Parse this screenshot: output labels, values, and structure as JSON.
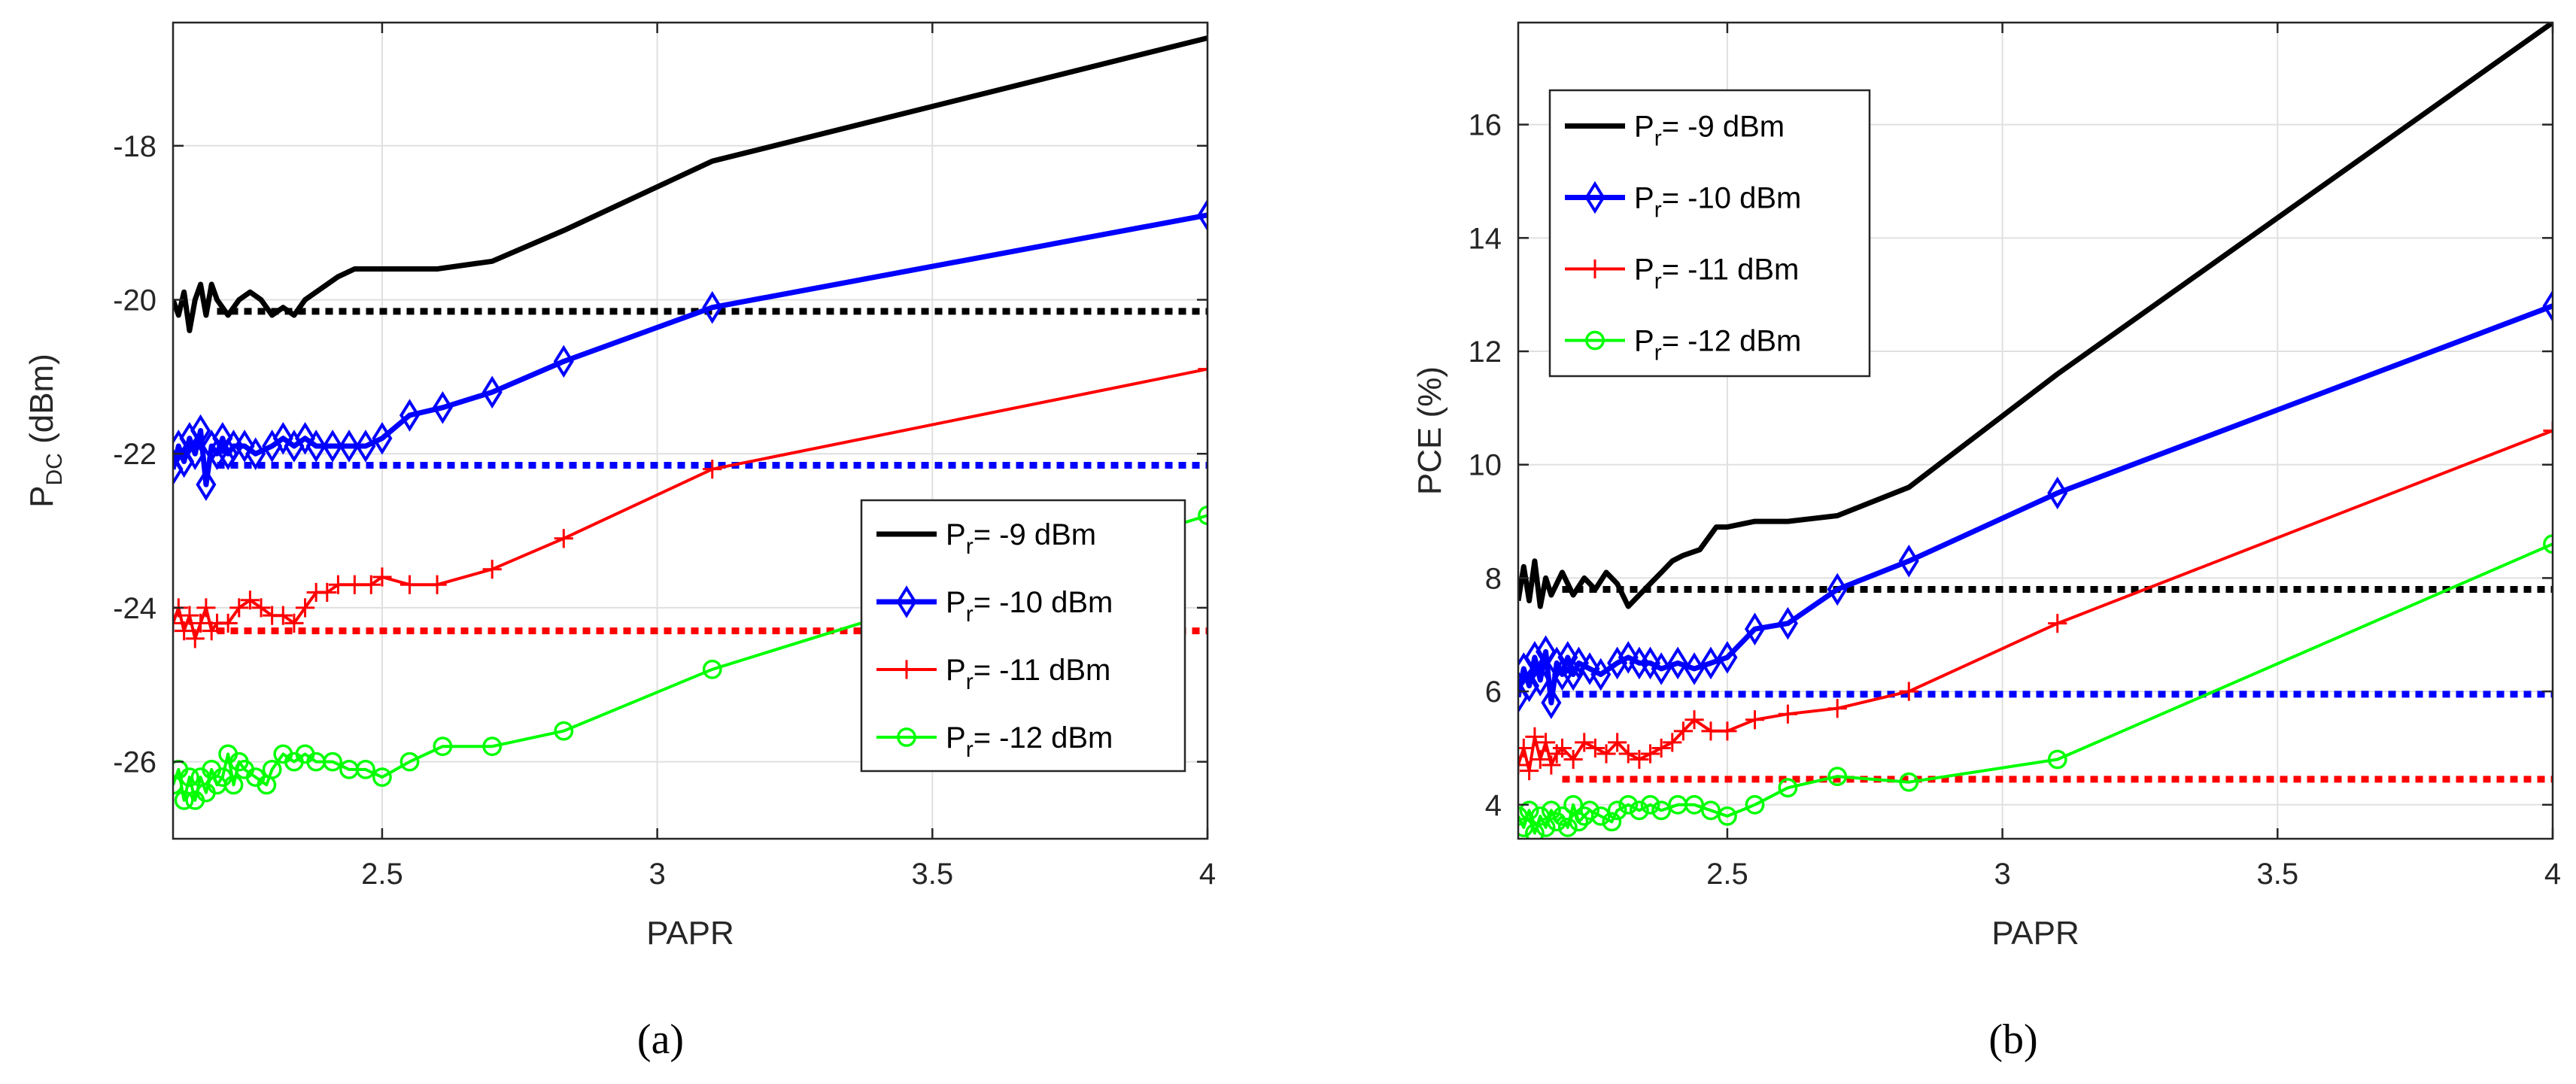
{
  "panels": [
    {
      "caption": "(a)",
      "chart_data": {
        "type": "line",
        "xlabel": "PAPR",
        "ylabel_main": "P",
        "ylabel_sub": "DC",
        "ylabel_unit": " (dBm)",
        "xlim": [
          2.12,
          4.0
        ],
        "ylim": [
          -27.0,
          -16.4
        ],
        "xticks": [
          2.5,
          3,
          3.5,
          4
        ],
        "xtick_labels": [
          "2.5",
          "3",
          "3.5",
          "4"
        ],
        "yticks": [
          -26,
          -24,
          -22,
          -20,
          -18
        ],
        "ytick_labels": [
          "-26",
          "-24",
          "-22",
          "-20",
          "-18"
        ],
        "grid": true,
        "legend_position": "lower-right",
        "series": [
          {
            "name_main": "P",
            "name_sub": "r",
            "name_rest": "= -9 dBm",
            "color": "#000000",
            "marker": "none",
            "width": 7,
            "x": [
              2.12,
              2.13,
              2.14,
              2.15,
              2.16,
              2.17,
              2.18,
              2.19,
              2.2,
              2.22,
              2.24,
              2.26,
              2.28,
              2.3,
              2.32,
              2.34,
              2.36,
              2.4,
              2.42,
              2.45,
              2.48,
              2.5,
              2.55,
              2.6,
              2.7,
              2.83,
              3.1,
              4.0
            ],
            "y": [
              -20.0,
              -20.2,
              -19.9,
              -20.4,
              -20.0,
              -19.8,
              -20.2,
              -19.8,
              -20.0,
              -20.2,
              -20.0,
              -19.9,
              -20.0,
              -20.2,
              -20.1,
              -20.2,
              -20.0,
              -19.8,
              -19.7,
              -19.6,
              -19.6,
              -19.6,
              -19.6,
              -19.6,
              -19.5,
              -19.1,
              -18.2,
              -16.6
            ]
          },
          {
            "name_main": "P",
            "name_sub": "r",
            "name_rest": "= -10 dBm",
            "color": "#0000ff",
            "marker": "diamond",
            "width": 7,
            "x": [
              2.12,
              2.13,
              2.14,
              2.15,
              2.16,
              2.17,
              2.18,
              2.19,
              2.2,
              2.21,
              2.22,
              2.23,
              2.25,
              2.27,
              2.3,
              2.32,
              2.34,
              2.36,
              2.38,
              2.41,
              2.44,
              2.47,
              2.5,
              2.55,
              2.61,
              2.7,
              2.83,
              3.1,
              4.0
            ],
            "y": [
              -22.2,
              -21.9,
              -22.1,
              -21.8,
              -22.0,
              -21.7,
              -22.4,
              -21.9,
              -22.0,
              -21.8,
              -22.0,
              -21.9,
              -21.9,
              -22.0,
              -21.9,
              -21.8,
              -21.9,
              -21.8,
              -21.9,
              -21.9,
              -21.9,
              -21.9,
              -21.8,
              -21.5,
              -21.4,
              -21.2,
              -20.8,
              -20.1,
              -18.9
            ]
          },
          {
            "name_main": "P",
            "name_sub": "r",
            "name_rest": "= -11 dBm",
            "color": "#ff0000",
            "marker": "plus",
            "width": 4,
            "x": [
              2.12,
              2.13,
              2.14,
              2.15,
              2.16,
              2.17,
              2.18,
              2.19,
              2.2,
              2.22,
              2.24,
              2.26,
              2.28,
              2.3,
              2.32,
              2.34,
              2.36,
              2.38,
              2.4,
              2.42,
              2.45,
              2.48,
              2.5,
              2.55,
              2.6,
              2.7,
              2.83,
              3.1,
              4.0
            ],
            "y": [
              -24.2,
              -24.0,
              -24.3,
              -24.1,
              -24.4,
              -24.2,
              -24.0,
              -24.3,
              -24.2,
              -24.2,
              -24.0,
              -23.9,
              -24.0,
              -24.1,
              -24.1,
              -24.2,
              -24.0,
              -23.8,
              -23.8,
              -23.7,
              -23.7,
              -23.7,
              -23.6,
              -23.7,
              -23.7,
              -23.5,
              -23.1,
              -22.2,
              -20.9
            ]
          },
          {
            "name_main": "P",
            "name_sub": "r",
            "name_rest": "= -12 dBm",
            "color": "#00ff00",
            "marker": "circle",
            "width": 4,
            "x": [
              2.12,
              2.13,
              2.14,
              2.15,
              2.16,
              2.17,
              2.18,
              2.19,
              2.2,
              2.21,
              2.22,
              2.23,
              2.24,
              2.25,
              2.27,
              2.29,
              2.3,
              2.32,
              2.34,
              2.36,
              2.38,
              2.41,
              2.44,
              2.47,
              2.5,
              2.55,
              2.61,
              2.7,
              2.83,
              3.1,
              4.0
            ],
            "y": [
              -26.3,
              -26.1,
              -26.5,
              -26.2,
              -26.5,
              -26.2,
              -26.4,
              -26.1,
              -26.3,
              -26.2,
              -25.9,
              -26.3,
              -26.0,
              -26.1,
              -26.2,
              -26.3,
              -26.1,
              -25.9,
              -26.0,
              -25.9,
              -26.0,
              -26.0,
              -26.1,
              -26.1,
              -26.2,
              -26.0,
              -25.8,
              -25.8,
              -25.6,
              -24.8,
              -22.8
            ]
          }
        ],
        "reference_lines": [
          {
            "color": "#000000",
            "y": -20.15,
            "x_start": 2.2,
            "x_end": 4.0
          },
          {
            "color": "#0000ff",
            "y": -22.15,
            "x_start": 2.2,
            "x_end": 4.0
          },
          {
            "color": "#ff0000",
            "y": -24.3,
            "x_start": 2.2,
            "x_end": 4.0
          }
        ]
      }
    },
    {
      "caption": "(b)",
      "chart_data": {
        "type": "line",
        "xlabel": "PAPR",
        "ylabel_main": "PCE (%)",
        "ylabel_sub": "",
        "ylabel_unit": "",
        "xlim": [
          2.12,
          4.0
        ],
        "ylim": [
          3.4,
          17.8
        ],
        "xticks": [
          2.5,
          3,
          3.5,
          4
        ],
        "xtick_labels": [
          "2.5",
          "3",
          "3.5",
          "4"
        ],
        "yticks": [
          4,
          6,
          8,
          10,
          12,
          14,
          16
        ],
        "ytick_labels": [
          "4",
          "6",
          "8",
          "10",
          "12",
          "14",
          "16"
        ],
        "grid": true,
        "legend_position": "top-left",
        "series": [
          {
            "name_main": "P",
            "name_sub": "r",
            "name_rest": "= -9 dBm",
            "color": "#000000",
            "marker": "none",
            "width": 7,
            "x": [
              2.12,
              2.13,
              2.14,
              2.15,
              2.16,
              2.17,
              2.18,
              2.2,
              2.22,
              2.24,
              2.26,
              2.28,
              2.3,
              2.32,
              2.34,
              2.36,
              2.38,
              2.4,
              2.42,
              2.45,
              2.48,
              2.5,
              2.55,
              2.61,
              2.7,
              2.83,
              3.1,
              4.0
            ],
            "y": [
              7.6,
              8.2,
              7.6,
              8.3,
              7.5,
              8.0,
              7.7,
              8.1,
              7.7,
              8.0,
              7.8,
              8.1,
              7.9,
              7.5,
              7.7,
              7.9,
              8.1,
              8.3,
              8.4,
              8.5,
              8.9,
              8.9,
              9.0,
              9.0,
              9.1,
              9.6,
              11.6,
              17.8
            ]
          },
          {
            "name_main": "P",
            "name_sub": "r",
            "name_rest": "= -10 dBm",
            "color": "#0000ff",
            "marker": "diamond",
            "width": 7,
            "x": [
              2.12,
              2.13,
              2.14,
              2.15,
              2.16,
              2.17,
              2.18,
              2.19,
              2.2,
              2.21,
              2.22,
              2.23,
              2.25,
              2.27,
              2.3,
              2.32,
              2.34,
              2.36,
              2.38,
              2.41,
              2.44,
              2.47,
              2.5,
              2.55,
              2.61,
              2.7,
              2.83,
              3.1,
              4.0
            ],
            "y": [
              5.9,
              6.4,
              6.1,
              6.6,
              6.2,
              6.7,
              5.8,
              6.5,
              6.3,
              6.6,
              6.3,
              6.5,
              6.4,
              6.3,
              6.5,
              6.6,
              6.5,
              6.5,
              6.4,
              6.5,
              6.4,
              6.5,
              6.6,
              7.1,
              7.2,
              7.8,
              8.3,
              9.5,
              12.8
            ]
          },
          {
            "name_main": "P",
            "name_sub": "r",
            "name_rest": "= -11 dBm",
            "color": "#ff0000",
            "marker": "plus",
            "width": 4,
            "x": [
              2.12,
              2.13,
              2.14,
              2.15,
              2.16,
              2.17,
              2.18,
              2.19,
              2.2,
              2.22,
              2.24,
              2.26,
              2.28,
              2.3,
              2.32,
              2.34,
              2.36,
              2.38,
              2.4,
              2.42,
              2.44,
              2.47,
              2.5,
              2.55,
              2.61,
              2.7,
              2.83,
              3.1,
              4.0
            ],
            "y": [
              4.7,
              5.0,
              4.6,
              5.2,
              4.8,
              5.1,
              4.7,
              4.9,
              5.0,
              4.8,
              5.1,
              5.0,
              4.9,
              5.1,
              4.9,
              4.8,
              4.9,
              5.0,
              5.1,
              5.3,
              5.5,
              5.3,
              5.3,
              5.5,
              5.6,
              5.7,
              6.0,
              7.2,
              10.6
            ]
          },
          {
            "name_main": "P",
            "name_sub": "r",
            "name_rest": "= -12 dBm",
            "color": "#00ff00",
            "marker": "circle",
            "width": 4,
            "x": [
              2.12,
              2.13,
              2.14,
              2.15,
              2.16,
              2.17,
              2.18,
              2.19,
              2.2,
              2.21,
              2.22,
              2.23,
              2.24,
              2.25,
              2.27,
              2.29,
              2.3,
              2.32,
              2.34,
              2.36,
              2.38,
              2.41,
              2.44,
              2.47,
              2.5,
              2.55,
              2.61,
              2.7,
              2.83,
              3.1,
              4.0
            ],
            "y": [
              3.8,
              3.6,
              3.9,
              3.5,
              3.8,
              3.6,
              3.9,
              3.7,
              3.8,
              3.6,
              4.0,
              3.7,
              3.8,
              3.9,
              3.8,
              3.7,
              3.9,
              4.0,
              3.9,
              4.0,
              3.9,
              4.0,
              4.0,
              3.9,
              3.8,
              4.0,
              4.3,
              4.5,
              4.4,
              4.8,
              8.6
            ]
          }
        ],
        "reference_lines": [
          {
            "color": "#000000",
            "y": 7.8,
            "x_start": 2.2,
            "x_end": 4.0
          },
          {
            "color": "#0000ff",
            "y": 5.95,
            "x_start": 2.2,
            "x_end": 4.0
          },
          {
            "color": "#ff0000",
            "y": 4.45,
            "x_start": 2.2,
            "x_end": 4.0
          }
        ]
      }
    }
  ]
}
